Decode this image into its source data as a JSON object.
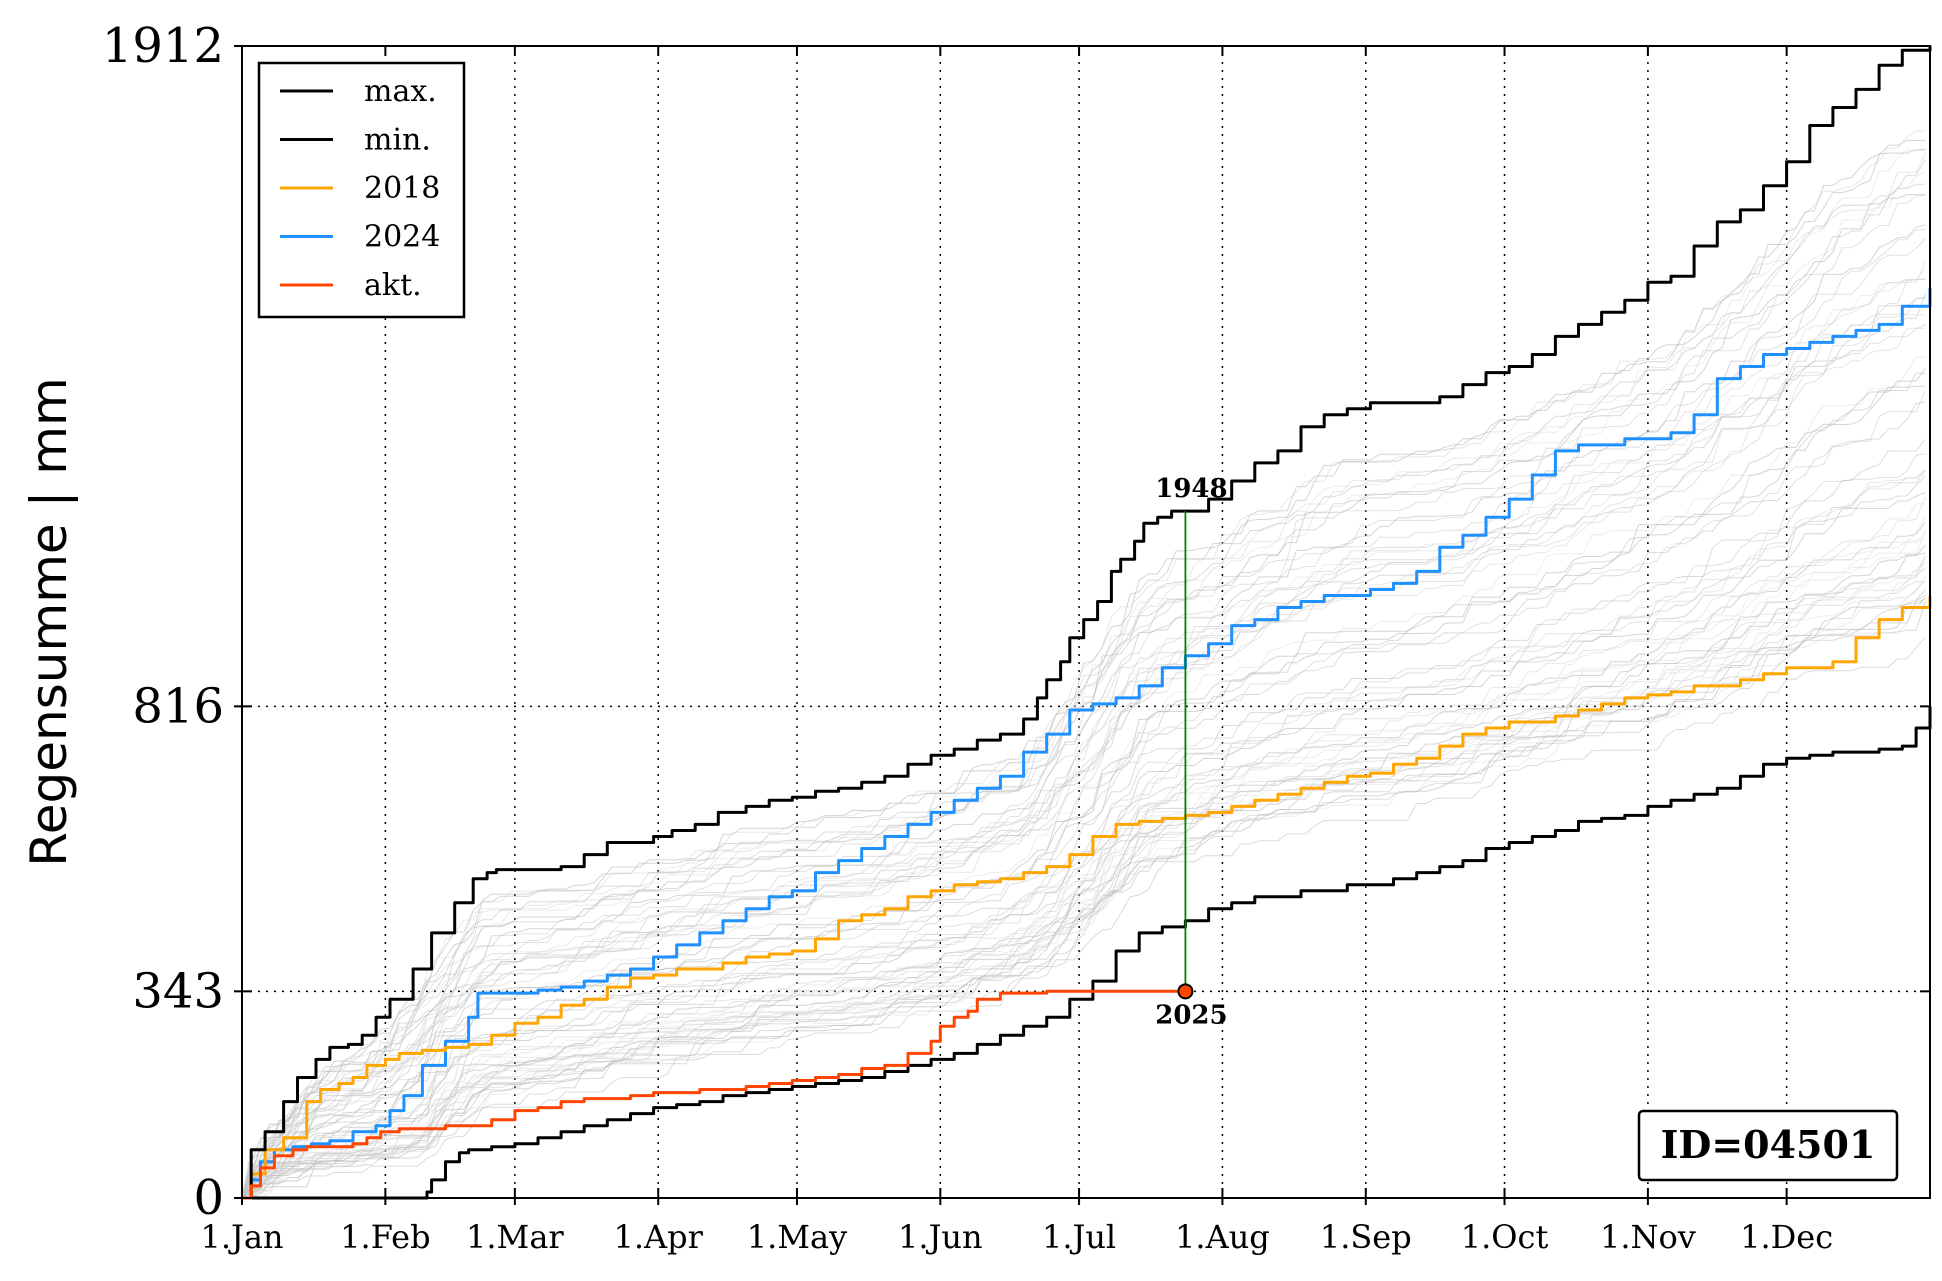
{
  "chart_data": {
    "type": "line",
    "ylabel": "Regensumme | mm",
    "xlabel": "",
    "title": "",
    "xlim": [
      1,
      366
    ],
    "ylim": [
      0,
      1912
    ],
    "yticks": [
      0,
      343,
      816,
      1912
    ],
    "xticks": [
      {
        "label": "1.Jan",
        "day": 1
      },
      {
        "label": "1.Feb",
        "day": 32
      },
      {
        "label": "1.Mar",
        "day": 60
      },
      {
        "label": "1.Apr",
        "day": 91
      },
      {
        "label": "1.May",
        "day": 121
      },
      {
        "label": "1.Jun",
        "day": 152
      },
      {
        "label": "1.Jul",
        "day": 182
      },
      {
        "label": "1.Aug",
        "day": 213
      },
      {
        "label": "1.Sep",
        "day": 244
      },
      {
        "label": "1.Oct",
        "day": 274
      },
      {
        "label": "1.Nov",
        "day": 305
      },
      {
        "label": "1.Dec",
        "day": 335
      }
    ],
    "hlines": [
      343,
      816
    ],
    "grid": "dotted",
    "legend_position": "top-left",
    "background_colors": [
      "#bdbdbd",
      "#c8c8c8",
      "#d3d3d3",
      "#dddddd",
      "#b3b3b3"
    ],
    "series": [
      {
        "name": "max.",
        "color": "#000000",
        "x": [
          1,
          3,
          6,
          10,
          13,
          17,
          20,
          24,
          27,
          30,
          33,
          38,
          42,
          47,
          51,
          54,
          56,
          60,
          65,
          70,
          75,
          80,
          85,
          90,
          94,
          99,
          104,
          110,
          115,
          120,
          125,
          130,
          135,
          140,
          145,
          150,
          155,
          160,
          165,
          170,
          173,
          175,
          178,
          180,
          183,
          186,
          189,
          191,
          194,
          196,
          199,
          202,
          205,
          210,
          215,
          220,
          225,
          230,
          235,
          240,
          245,
          250,
          255,
          260,
          265,
          270,
          275,
          280,
          285,
          290,
          295,
          300,
          305,
          310,
          315,
          320,
          325,
          330,
          335,
          340,
          345,
          350,
          355,
          360,
          366
        ],
        "y": [
          0,
          80,
          110,
          160,
          200,
          230,
          250,
          255,
          270,
          300,
          330,
          380,
          440,
          490,
          530,
          540,
          545,
          545,
          545,
          550,
          570,
          590,
          590,
          600,
          610,
          620,
          640,
          650,
          660,
          665,
          675,
          680,
          690,
          700,
          720,
          735,
          745,
          760,
          770,
          795,
          830,
          860,
          890,
          930,
          960,
          990,
          1040,
          1060,
          1090,
          1120,
          1130,
          1140,
          1140,
          1160,
          1190,
          1220,
          1240,
          1280,
          1300,
          1310,
          1320,
          1320,
          1320,
          1330,
          1350,
          1370,
          1380,
          1400,
          1430,
          1450,
          1470,
          1490,
          1520,
          1530,
          1580,
          1620,
          1640,
          1680,
          1720,
          1780,
          1810,
          1840,
          1880,
          1905,
          1912
        ]
      },
      {
        "name": "min.",
        "color": "#000000",
        "x": [
          1,
          20,
          40,
          41,
          42,
          45,
          48,
          50,
          55,
          60,
          65,
          70,
          75,
          80,
          85,
          90,
          95,
          100,
          105,
          110,
          115,
          120,
          125,
          130,
          135,
          140,
          145,
          150,
          155,
          160,
          165,
          170,
          175,
          180,
          185,
          190,
          195,
          200,
          205,
          210,
          215,
          220,
          225,
          230,
          235,
          240,
          245,
          250,
          255,
          260,
          265,
          270,
          275,
          280,
          285,
          290,
          295,
          300,
          305,
          310,
          315,
          320,
          325,
          330,
          335,
          340,
          345,
          350,
          355,
          360,
          363,
          366
        ],
        "y": [
          0,
          0,
          0,
          10,
          30,
          60,
          75,
          80,
          85,
          90,
          100,
          110,
          120,
          130,
          140,
          150,
          155,
          160,
          170,
          175,
          180,
          185,
          190,
          195,
          200,
          210,
          220,
          230,
          240,
          255,
          270,
          285,
          300,
          330,
          360,
          410,
          440,
          450,
          460,
          480,
          490,
          500,
          500,
          510,
          510,
          520,
          520,
          530,
          540,
          550,
          560,
          580,
          590,
          600,
          610,
          625,
          630,
          635,
          650,
          660,
          670,
          680,
          700,
          720,
          730,
          735,
          740,
          740,
          745,
          750,
          780,
          816
        ]
      },
      {
        "name": "2018",
        "color": "#ffa500",
        "x": [
          1,
          3,
          6,
          10,
          15,
          18,
          22,
          25,
          28,
          32,
          35,
          40,
          45,
          50,
          55,
          60,
          65,
          70,
          75,
          80,
          85,
          90,
          95,
          100,
          105,
          110,
          115,
          120,
          125,
          130,
          135,
          140,
          145,
          150,
          155,
          160,
          165,
          170,
          175,
          180,
          185,
          190,
          195,
          200,
          205,
          210,
          215,
          220,
          225,
          230,
          235,
          240,
          245,
          250,
          255,
          260,
          265,
          270,
          275,
          280,
          285,
          290,
          295,
          300,
          305,
          310,
          315,
          320,
          325,
          330,
          335,
          340,
          345,
          350,
          355,
          360,
          366
        ],
        "y": [
          0,
          40,
          80,
          100,
          160,
          180,
          190,
          200,
          220,
          230,
          240,
          245,
          250,
          255,
          270,
          290,
          300,
          320,
          330,
          350,
          365,
          370,
          380,
          380,
          390,
          400,
          405,
          410,
          430,
          460,
          470,
          480,
          500,
          510,
          520,
          525,
          530,
          540,
          550,
          570,
          600,
          620,
          625,
          630,
          635,
          640,
          650,
          660,
          670,
          680,
          690,
          700,
          705,
          720,
          730,
          750,
          770,
          780,
          790,
          790,
          800,
          810,
          820,
          830,
          835,
          840,
          850,
          850,
          860,
          870,
          880,
          880,
          890,
          930,
          960,
          980,
          1000
        ]
      },
      {
        "name": "2024",
        "color": "#1e90ff",
        "x": [
          1,
          3,
          5,
          8,
          12,
          16,
          20,
          25,
          30,
          33,
          36,
          40,
          45,
          50,
          52,
          55,
          60,
          65,
          70,
          75,
          80,
          85,
          90,
          95,
          100,
          105,
          110,
          115,
          120,
          125,
          130,
          135,
          140,
          145,
          150,
          155,
          160,
          165,
          170,
          175,
          180,
          185,
          190,
          195,
          200,
          205,
          210,
          215,
          220,
          225,
          230,
          235,
          240,
          245,
          250,
          255,
          260,
          265,
          270,
          275,
          280,
          285,
          290,
          295,
          300,
          305,
          310,
          315,
          320,
          325,
          330,
          335,
          340,
          345,
          350,
          355,
          360,
          366
        ],
        "y": [
          0,
          30,
          60,
          80,
          85,
          90,
          95,
          110,
          120,
          145,
          170,
          220,
          260,
          300,
          340,
          340,
          340,
          345,
          350,
          360,
          370,
          380,
          400,
          420,
          440,
          460,
          480,
          500,
          510,
          540,
          560,
          580,
          600,
          620,
          640,
          660,
          680,
          700,
          740,
          770,
          810,
          820,
          830,
          850,
          880,
          900,
          920,
          950,
          960,
          980,
          990,
          1000,
          1000,
          1010,
          1020,
          1040,
          1080,
          1100,
          1130,
          1160,
          1200,
          1240,
          1250,
          1250,
          1260,
          1260,
          1270,
          1300,
          1360,
          1380,
          1400,
          1410,
          1420,
          1430,
          1440,
          1450,
          1480,
          1510
        ]
      },
      {
        "name": "akt.",
        "color": "#ff4500",
        "x": [
          1,
          3,
          5,
          8,
          12,
          15,
          18,
          22,
          25,
          28,
          31,
          35,
          40,
          45,
          50,
          55,
          60,
          65,
          70,
          75,
          80,
          85,
          90,
          95,
          100,
          105,
          110,
          115,
          120,
          125,
          130,
          135,
          140,
          145,
          150,
          152,
          155,
          158,
          160,
          165,
          170,
          175,
          180,
          185,
          190,
          195,
          200,
          205
        ],
        "y": [
          0,
          20,
          50,
          70,
          80,
          85,
          85,
          85,
          90,
          100,
          110,
          115,
          115,
          120,
          120,
          130,
          145,
          150,
          160,
          165,
          165,
          170,
          175,
          175,
          180,
          180,
          185,
          190,
          195,
          200,
          205,
          215,
          220,
          240,
          260,
          285,
          300,
          310,
          330,
          340,
          340,
          343,
          343,
          343,
          343,
          343,
          343,
          343
        ]
      }
    ],
    "annotations": [
      {
        "text": "1948",
        "x": 205,
        "y": 1140,
        "anchor": "above"
      },
      {
        "text": "2025",
        "x": 205,
        "y": 343,
        "anchor": "below"
      }
    ],
    "id_box": "ID=04501"
  }
}
